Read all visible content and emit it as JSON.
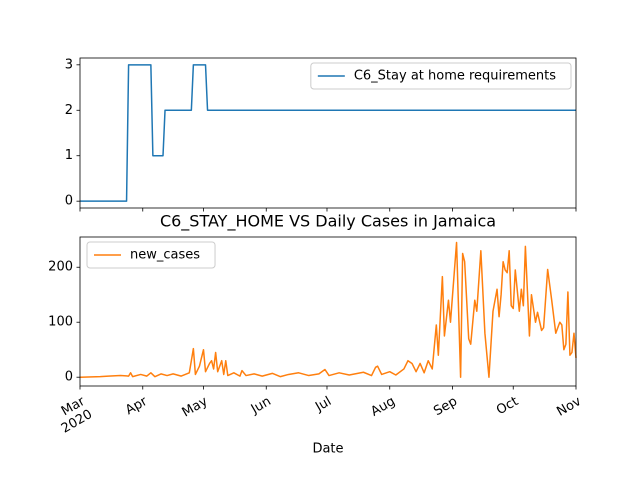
{
  "chart_data": [
    {
      "type": "line",
      "x": [
        "2020-03-01",
        "2020-03-24",
        "2020-03-25",
        "2020-04-05",
        "2020-04-06",
        "2020-04-11",
        "2020-04-12",
        "2020-04-25",
        "2020-04-26",
        "2020-05-02",
        "2020-05-03",
        "2020-11-01"
      ],
      "series": [
        {
          "name": "C6_Stay at home requirements",
          "color": "#1f77b4",
          "values": [
            0,
            0,
            3,
            3,
            1,
            1,
            2,
            2,
            3,
            3,
            2,
            2
          ]
        }
      ],
      "xlim": [
        "2020-03-01",
        "2020-11-01"
      ],
      "xticks": [
        "2020-03-01",
        "2020-04-01",
        "2020-05-01",
        "2020-06-01",
        "2020-07-01",
        "2020-08-01",
        "2020-09-01",
        "2020-10-01",
        "2020-11-01"
      ],
      "ylim": [
        -0.15,
        3.15
      ],
      "yticks": [
        0,
        1,
        2,
        3
      ],
      "legend": "upper right"
    },
    {
      "type": "line",
      "title": "C6_STAY_HOME VS Daily Cases in Jamaica",
      "xlabel": "Date",
      "x": [
        "2020-03-01",
        "2020-03-11",
        "2020-03-15",
        "2020-03-21",
        "2020-03-25",
        "2020-03-26",
        "2020-03-27",
        "2020-03-31",
        "2020-04-03",
        "2020-04-05",
        "2020-04-07",
        "2020-04-10",
        "2020-04-13",
        "2020-04-16",
        "2020-04-20",
        "2020-04-24",
        "2020-04-26",
        "2020-04-27",
        "2020-04-29",
        "2020-05-01",
        "2020-05-02",
        "2020-05-04",
        "2020-05-05",
        "2020-05-06",
        "2020-05-07",
        "2020-05-08",
        "2020-05-10",
        "2020-05-11",
        "2020-05-12",
        "2020-05-13",
        "2020-05-16",
        "2020-05-19",
        "2020-05-20",
        "2020-05-22",
        "2020-05-26",
        "2020-05-30",
        "2020-06-04",
        "2020-06-08",
        "2020-06-12",
        "2020-06-17",
        "2020-06-22",
        "2020-06-27",
        "2020-06-30",
        "2020-07-02",
        "2020-07-07",
        "2020-07-12",
        "2020-07-19",
        "2020-07-23",
        "2020-07-25",
        "2020-07-26",
        "2020-07-28",
        "2020-08-01",
        "2020-08-04",
        "2020-08-08",
        "2020-08-10",
        "2020-08-12",
        "2020-08-14",
        "2020-08-16",
        "2020-08-18",
        "2020-08-20",
        "2020-08-22",
        "2020-08-24",
        "2020-08-25",
        "2020-08-27",
        "2020-08-28",
        "2020-08-30",
        "2020-08-31",
        "2020-09-03",
        "2020-09-05",
        "2020-09-06",
        "2020-09-07",
        "2020-09-09",
        "2020-09-10",
        "2020-09-12",
        "2020-09-13",
        "2020-09-15",
        "2020-09-17",
        "2020-09-19",
        "2020-09-21",
        "2020-09-23",
        "2020-09-24",
        "2020-09-25",
        "2020-09-26",
        "2020-09-27",
        "2020-09-28",
        "2020-09-29",
        "2020-09-30",
        "2020-10-01",
        "2020-10-02",
        "2020-10-04",
        "2020-10-05",
        "2020-10-06",
        "2020-10-07",
        "2020-10-09",
        "2020-10-10",
        "2020-10-12",
        "2020-10-13",
        "2020-10-15",
        "2020-10-16",
        "2020-10-18",
        "2020-10-20",
        "2020-10-22",
        "2020-10-24",
        "2020-10-25",
        "2020-10-26",
        "2020-10-27",
        "2020-10-28",
        "2020-10-29",
        "2020-10-30",
        "2020-10-31",
        "2020-11-01"
      ],
      "series": [
        {
          "name": "new_cases",
          "color": "#ff7f0e",
          "values": [
            0,
            1,
            2,
            3,
            2,
            8,
            1,
            5,
            2,
            8,
            1,
            6,
            3,
            6,
            2,
            8,
            52,
            5,
            20,
            50,
            10,
            25,
            30,
            15,
            45,
            10,
            30,
            5,
            30,
            3,
            8,
            2,
            12,
            3,
            6,
            2,
            7,
            1,
            5,
            8,
            3,
            6,
            14,
            3,
            8,
            4,
            9,
            3,
            18,
            20,
            5,
            10,
            4,
            15,
            30,
            25,
            10,
            25,
            8,
            30,
            15,
            95,
            40,
            183,
            75,
            140,
            100,
            245,
            0,
            225,
            210,
            70,
            60,
            140,
            120,
            230,
            80,
            0,
            120,
            160,
            110,
            150,
            210,
            195,
            190,
            230,
            130,
            125,
            195,
            120,
            160,
            130,
            238,
            75,
            150,
            100,
            118,
            85,
            90,
            196,
            140,
            80,
            100,
            95,
            50,
            60,
            155,
            40,
            45,
            80,
            35
          ]
        }
      ],
      "xlim": [
        "2020-03-01",
        "2020-11-01"
      ],
      "xticks": [
        {
          "value": "2020-03-01",
          "label": "Mar\n2020"
        },
        {
          "value": "2020-04-01",
          "label": "Apr"
        },
        {
          "value": "2020-05-01",
          "label": "May"
        },
        {
          "value": "2020-06-01",
          "label": "Jun"
        },
        {
          "value": "2020-07-01",
          "label": "Jul"
        },
        {
          "value": "2020-08-01",
          "label": "Aug"
        },
        {
          "value": "2020-09-01",
          "label": "Sep"
        },
        {
          "value": "2020-10-01",
          "label": "Oct"
        },
        {
          "value": "2020-11-01",
          "label": "Nov"
        }
      ],
      "ylim": [
        -16,
        255
      ],
      "yticks": [
        0,
        100,
        200
      ],
      "legend": "upper left"
    }
  ]
}
